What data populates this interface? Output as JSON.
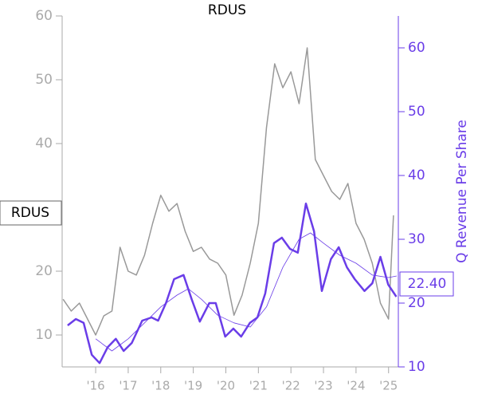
{
  "chart_data": {
    "type": "line",
    "title": "RDUS",
    "y2_label": "Q Revenue Per Share",
    "annotations": [
      "RDUS",
      "22.40"
    ],
    "xlim": [
      2014.97,
      2025.3
    ],
    "xticks": [
      {
        "value": 2016,
        "label": "'16"
      },
      {
        "value": 2017,
        "label": "'17"
      },
      {
        "value": 2018,
        "label": "'18"
      },
      {
        "value": 2019,
        "label": "'19"
      },
      {
        "value": 2020,
        "label": "'20"
      },
      {
        "value": 2021,
        "label": "'21"
      },
      {
        "value": 2022,
        "label": "'22"
      },
      {
        "value": 2023,
        "label": "'23"
      },
      {
        "value": 2024,
        "label": "'24"
      },
      {
        "value": 2025,
        "label": "'25"
      }
    ],
    "ylim": [
      5,
      60
    ],
    "yticks": [
      10,
      20,
      30,
      40,
      50,
      60
    ],
    "y2lim": [
      10,
      65
    ],
    "y2ticks": [
      10,
      20,
      30,
      40,
      50,
      60
    ],
    "left_axis_color": "#aaaaaa",
    "right_axis_color": "#6a3de8",
    "series": [
      {
        "name": "RDUS",
        "color": "#999999",
        "width": 1.5,
        "x": [
          2015.0,
          2015.25,
          2015.5,
          2015.75,
          2016.0,
          2016.25,
          2016.5,
          2016.75,
          2017.0,
          2017.25,
          2017.5,
          2017.75,
          2018.0,
          2018.25,
          2018.5,
          2018.75,
          2019.0,
          2019.25,
          2019.5,
          2019.75,
          2020.0,
          2020.25,
          2020.5,
          2020.75,
          2021.0,
          2021.25,
          2021.5,
          2021.75,
          2022.0,
          2022.25,
          2022.5,
          2022.75,
          2023.0,
          2023.25,
          2023.5,
          2023.75,
          2024.0,
          2024.25,
          2024.5,
          2024.75,
          2025.0,
          2025.15
        ],
        "values": [
          15.6,
          13.75,
          15,
          12.5,
          10,
          13,
          13.75,
          23.75,
          20,
          19.4,
          22.5,
          27.5,
          31.9,
          29.4,
          30.6,
          26.25,
          23.1,
          23.75,
          21.9,
          21.25,
          19.4,
          13.1,
          16.25,
          21.25,
          27.5,
          42.5,
          52.5,
          48.75,
          51.25,
          46.25,
          55,
          37.5,
          35,
          32.5,
          31.25,
          33.75,
          27.5,
          25,
          21.25,
          15,
          12.5,
          28.75
        ]
      },
      {
        "name": "Q Revenue Per Share",
        "color": "#6a3de8",
        "width": 2.5,
        "axis": "y2",
        "x": [
          2015.14,
          2015.39,
          2015.63,
          2015.88,
          2016.12,
          2016.37,
          2016.62,
          2016.86,
          2017.11,
          2017.43,
          2017.72,
          2017.92,
          2018.16,
          2018.41,
          2018.7,
          2018.95,
          2019.2,
          2019.49,
          2019.69,
          2019.98,
          2020.23,
          2020.47,
          2020.74,
          2020.97,
          2021.21,
          2021.48,
          2021.72,
          2021.97,
          2022.21,
          2022.46,
          2022.71,
          2022.95,
          2023.23,
          2023.47,
          2023.72,
          2023.96,
          2024.26,
          2024.5,
          2024.75,
          2024.99,
          2025.24
        ],
        "values": [
          16.5,
          17.5,
          16.9,
          11.9,
          10.6,
          13.1,
          14.4,
          12.5,
          13.75,
          17.25,
          17.75,
          17.25,
          20,
          23.75,
          24.4,
          20.6,
          17.1,
          20,
          20,
          14.75,
          16,
          14.75,
          16.9,
          17.75,
          21.5,
          29.4,
          30.25,
          28.5,
          27.9,
          35.6,
          31.25,
          21.9,
          26.9,
          28.75,
          25.6,
          23.75,
          21.9,
          23.1,
          27.25,
          22.9,
          21
        ]
      },
      {
        "color": "#6a3de8",
        "width": 0.8,
        "axis": "y2",
        "x": [
          2016.0,
          2016.5,
          2017.0,
          2017.5,
          2018.0,
          2018.5,
          2018.85,
          2019.25,
          2019.75,
          2020.25,
          2020.75,
          2021.25,
          2021.75,
          2022.25,
          2022.6,
          2023.0,
          2023.5,
          2024.0,
          2024.5,
          2025.0,
          2025.25
        ],
        "values": [
          14.4,
          12.5,
          14.4,
          16.9,
          19.4,
          21.25,
          22.25,
          20.6,
          18.1,
          16.9,
          16.25,
          19.4,
          25.6,
          30,
          31,
          29.4,
          27.5,
          26.25,
          24.4,
          24,
          24.25
        ]
      }
    ]
  }
}
